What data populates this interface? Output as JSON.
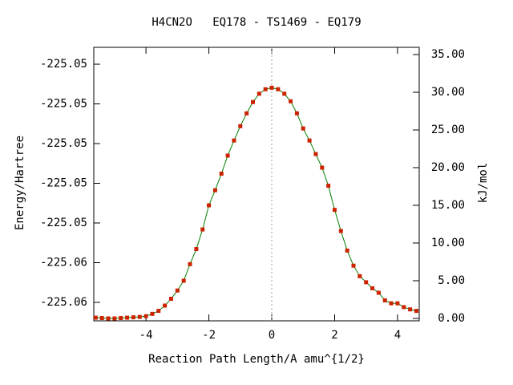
{
  "chart_data": {
    "type": "line",
    "title": "H4CN2O   EQ178 - TS1469 - EQ179",
    "xlabel": "Reaction Path Length/A amu^{1/2}",
    "ylabel": "Energy/Hartree",
    "y2label": "kJ/mol",
    "x": [
      -5.6,
      -5.4,
      -5.2,
      -5.0,
      -4.8,
      -4.6,
      -4.4,
      -4.2,
      -4.0,
      -3.8,
      -3.6,
      -3.4,
      -3.2,
      -3.0,
      -2.8,
      -2.6,
      -2.4,
      -2.2,
      -2.0,
      -1.8,
      -1.6,
      -1.4,
      -1.2,
      -1.0,
      -0.8,
      -0.6,
      -0.4,
      -0.2,
      0.0,
      0.2,
      0.4,
      0.6,
      0.8,
      1.0,
      1.2,
      1.4,
      1.6,
      1.8,
      2.0,
      2.2,
      2.4,
      2.6,
      2.8,
      3.0,
      3.2,
      3.4,
      3.6,
      3.8,
      4.0,
      4.2,
      4.4,
      4.6
    ],
    "series": [
      {
        "color": "#008000",
        "marker_color": "#cc2200",
        "axis": "y2",
        "values": [
          0.1,
          0.05,
          0.0,
          0.0,
          0.05,
          0.1,
          0.15,
          0.2,
          0.3,
          0.6,
          1.0,
          1.7,
          2.6,
          3.7,
          5.0,
          7.2,
          9.2,
          11.8,
          15.0,
          17.0,
          19.2,
          21.6,
          23.6,
          25.5,
          27.2,
          28.7,
          29.8,
          30.4,
          30.6,
          30.4,
          29.8,
          28.8,
          27.2,
          25.2,
          23.6,
          21.8,
          20.0,
          17.6,
          14.4,
          11.6,
          9.0,
          7.0,
          5.6,
          4.8,
          4.0,
          3.4,
          2.4,
          2.0,
          2.0,
          1.5,
          1.2,
          1.0
        ]
      }
    ],
    "xlim": [
      -5.66,
      4.69
    ],
    "xticks": [
      -4,
      -2,
      0,
      2,
      4
    ],
    "ylim": [
      -225.05893,
      -225.04515
    ],
    "yticks": [
      {
        "value": -225.058,
        "label": "-225.06"
      },
      {
        "value": -225.056,
        "label": "-225.06"
      },
      {
        "value": -225.054,
        "label": "-225.05"
      },
      {
        "value": -225.052,
        "label": "-225.05"
      },
      {
        "value": -225.05,
        "label": "-225.05"
      },
      {
        "value": -225.048,
        "label": "-225.05"
      },
      {
        "value": -225.046,
        "label": "-225.05"
      }
    ],
    "y2lim": [
      -0.32,
      35.96
    ],
    "y2ticks": [
      {
        "value": 0,
        "label": "0.00"
      },
      {
        "value": 5,
        "label": "5.00"
      },
      {
        "value": 10,
        "label": "10.00"
      },
      {
        "value": 15,
        "label": "15.00"
      },
      {
        "value": 20,
        "label": "20.00"
      },
      {
        "value": 25,
        "label": "25.00"
      },
      {
        "value": 30,
        "label": "30.00"
      },
      {
        "value": 35,
        "label": "35.00"
      }
    ],
    "vline_x": 0
  }
}
